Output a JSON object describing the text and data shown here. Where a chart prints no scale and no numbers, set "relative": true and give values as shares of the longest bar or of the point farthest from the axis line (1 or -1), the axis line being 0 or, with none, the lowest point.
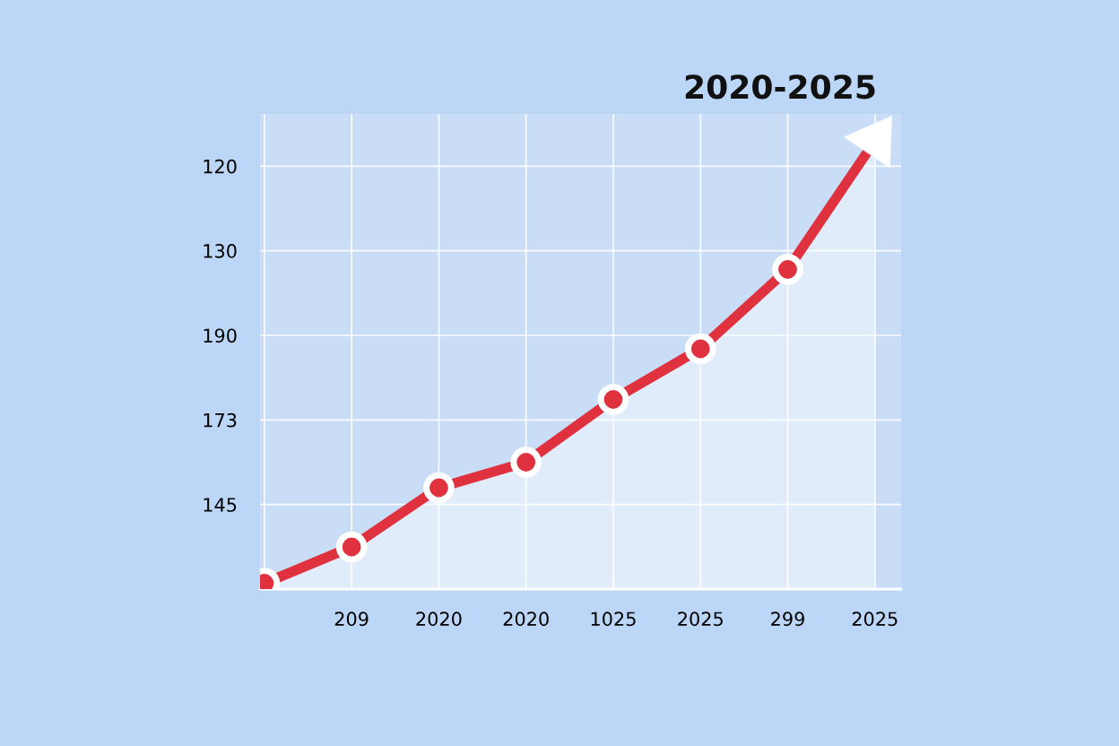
{
  "chart_data": {
    "type": "area",
    "title": "2020-2025",
    "relative": true,
    "categories": [
      null,
      "209",
      "2020",
      "2020",
      "1025",
      "2025",
      "299",
      "2025"
    ],
    "annotations": [
      "120",
      "130",
      "190",
      "173",
      "145"
    ],
    "grid": true,
    "series": [
      {
        "color": "#e0313f",
        "marker": "none",
        "values": [
          0.013,
          0.094,
          0.226,
          0.283,
          0.423,
          0.536,
          0.713,
          1
        ]
      },
      {
        "type": "scatter",
        "color": "#e0313f",
        "marker": "circle",
        "values": [
          0.013,
          0.094,
          0.226,
          0.283,
          0.423,
          0.536,
          0.713,
          null
        ]
      }
    ]
  }
}
